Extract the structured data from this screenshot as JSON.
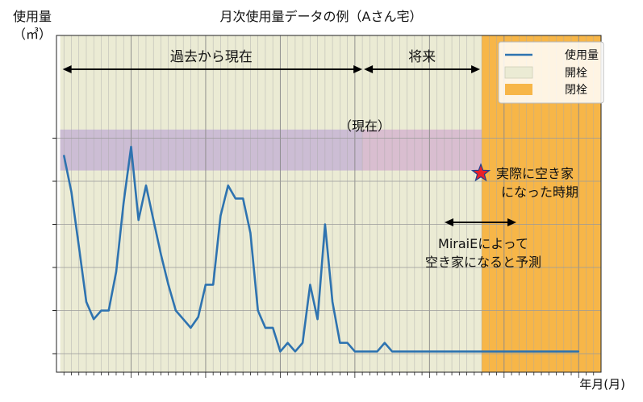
{
  "chart_data": {
    "type": "line",
    "title": "月次使用量データの例（Aさん宅）",
    "ylabel": "使用量\n（㎥）",
    "xlabel": "年月(月)",
    "ylim": [
      0,
      10
    ],
    "x_range": [
      0,
      73
    ],
    "grid": true,
    "legend_position": "top-right",
    "series": [
      {
        "name": "使用量",
        "color": "#2e73b0",
        "x": [
          1,
          2,
          3,
          4,
          5,
          6,
          7,
          8,
          9,
          10,
          11,
          12,
          13,
          14,
          15,
          16,
          17,
          18,
          19,
          20,
          21,
          22,
          23,
          24,
          25,
          26,
          27,
          28,
          29,
          30,
          31,
          32,
          33,
          34,
          35,
          36,
          37,
          38,
          39,
          40,
          41,
          42,
          43,
          44,
          45,
          46,
          47,
          48,
          49,
          50,
          51,
          52,
          53,
          54,
          55,
          56,
          57,
          58,
          59,
          60,
          61,
          62,
          63,
          64,
          65,
          66,
          67,
          68,
          69,
          70
        ],
        "values": [
          9.2,
          7.5,
          5.0,
          2.4,
          1.6,
          2.0,
          2.0,
          3.8,
          7.0,
          9.6,
          6.2,
          7.8,
          6.2,
          4.6,
          3.2,
          2.0,
          1.6,
          1.2,
          1.7,
          3.2,
          3.2,
          6.4,
          7.8,
          7.2,
          7.2,
          5.6,
          2.0,
          1.2,
          1.2,
          0.1,
          0.5,
          0.1,
          0.5,
          3.2,
          1.6,
          6.0,
          2.4,
          0.5,
          0.5,
          0.1,
          0.1,
          0.1,
          0.1,
          0.5,
          0.1,
          0.1,
          0.1,
          0.1,
          0.1,
          0.1,
          0.1,
          0.1,
          0.1,
          0.1,
          0.1,
          0.1,
          0.1,
          0.1,
          0.1,
          0.1,
          0.1,
          0.1,
          0.1,
          0.1,
          0.1,
          0.1,
          0.1,
          0.1,
          0.1,
          0.1
        ]
      }
    ],
    "regions": [
      {
        "name": "開栓",
        "x_start": 1,
        "x_end": 57,
        "color": "#ebebd4"
      },
      {
        "name": "閉栓",
        "x_start": 57,
        "x_end": 73,
        "color": "#f7b648"
      }
    ],
    "annotation_bands": [
      {
        "label": "過去から現在",
        "x_start": 1,
        "x_end": 41,
        "y_start": 8.5,
        "y_end": 10.4,
        "color": "#c9b8d4"
      },
      {
        "label": "将来",
        "x_start": 41,
        "x_end": 57,
        "y_start": 8.5,
        "y_end": 10.4,
        "color": "#d7b9cf"
      }
    ],
    "annotations": [
      {
        "text": "（現在）",
        "x": 40,
        "y": 6.3
      },
      {
        "text": "実際に空き家\nになった時期",
        "x": 58.5,
        "y": 5.0
      },
      {
        "text": "MiraiEによって\n空き家になると予測",
        "x": 57,
        "y": 3.1
      }
    ]
  }
}
